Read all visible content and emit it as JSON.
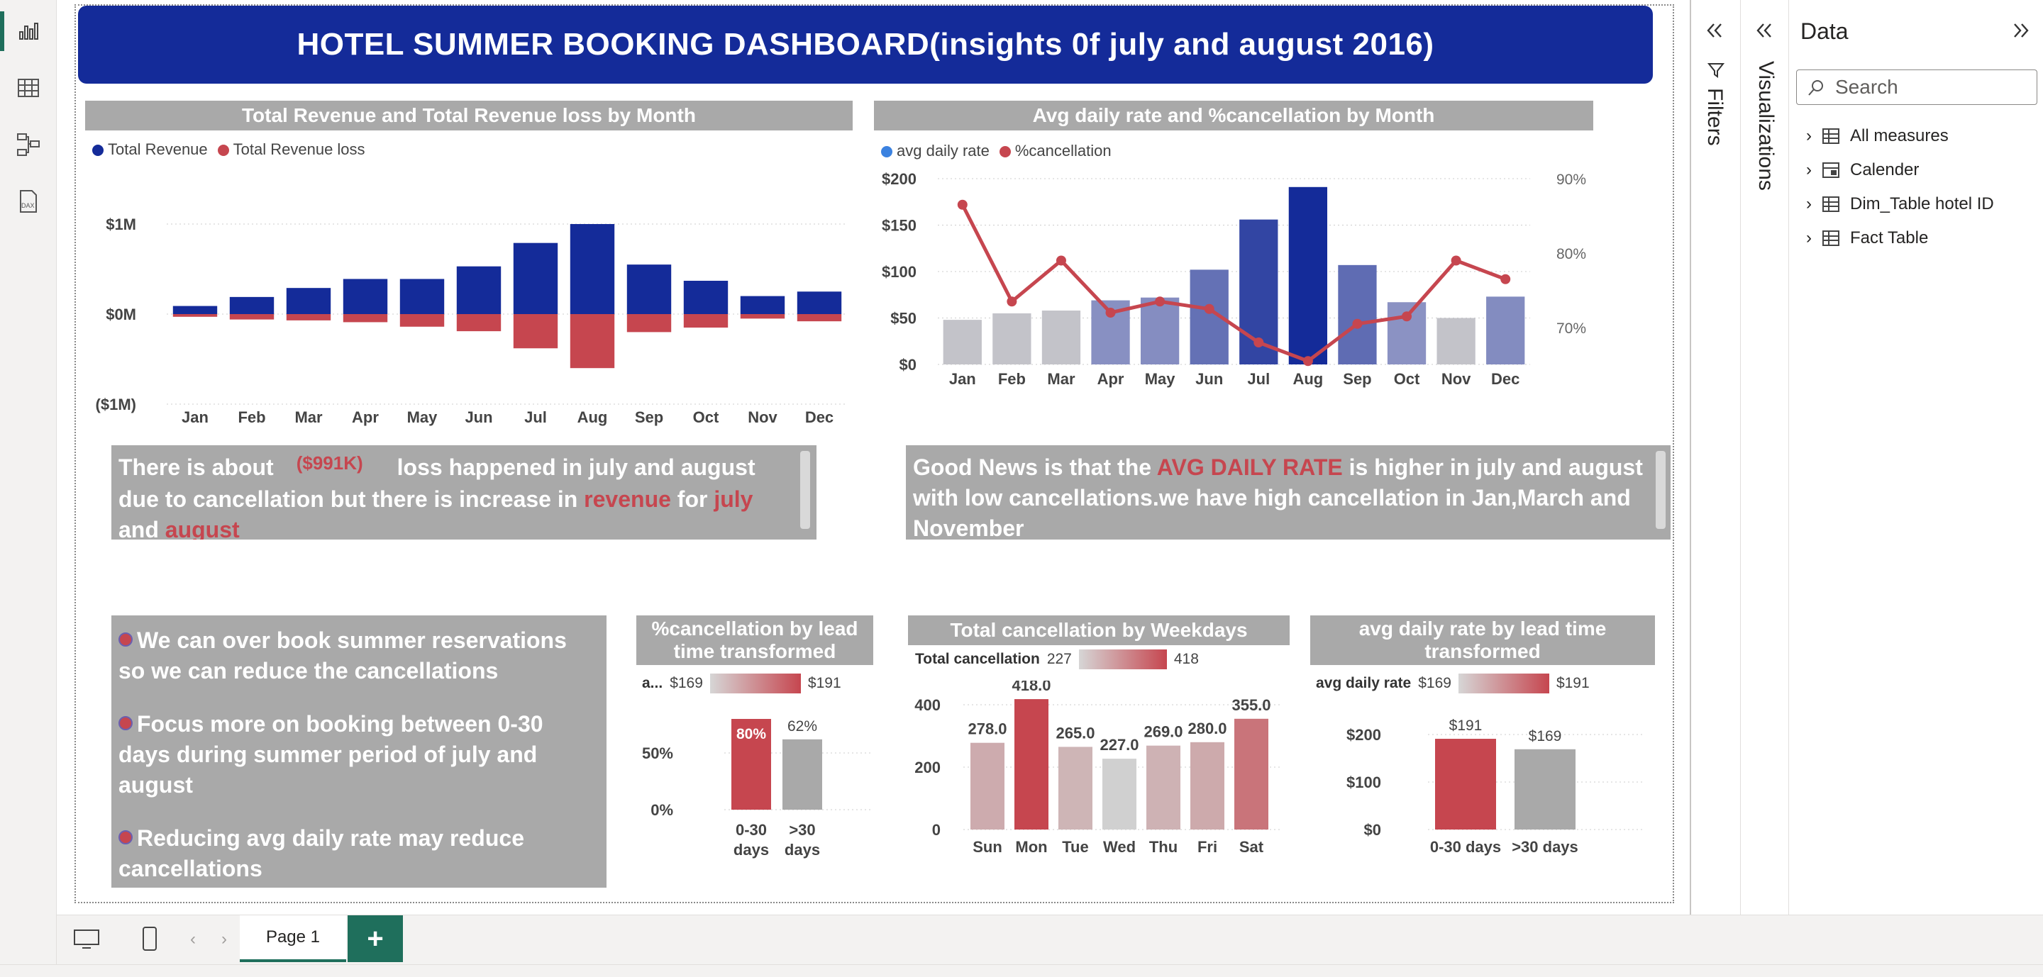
{
  "colors": {
    "title_bg": "#142b99",
    "revenue": "#142b99",
    "loss": "#c6464f",
    "panel_gray": "#a9a9a9",
    "accent_green": "#1f6f5c",
    "avg_rate_dot": "#3b82e0"
  },
  "rail": {
    "icons": [
      "report-view-icon",
      "table-view-icon",
      "model-view-icon",
      "dax-query-icon"
    ]
  },
  "dashboard": {
    "title": "HOTEL SUMMER BOOKING DASHBOARD(insights 0f july and august 2016)",
    "note_left": {
      "line1_pre": "There is about",
      "loss_value": "($991K)",
      "line1_post": "loss happened in july and august",
      "line2_pre": "due to cancellation but there is increase in",
      "kw_revenue": "revenue",
      "kw_for": "for",
      "kw_july": "july",
      "line3_and": "and",
      "kw_august": "august"
    },
    "note_right": {
      "pre": "Good News is that the",
      "kw": "AVG DAILY RATE",
      "post": "is higher in july and august with low cancellations.we have high cancellation in Jan,March and November"
    },
    "bullets": [
      "We can over book summer reservations so we can reduce the cancellations",
      "Focus more on booking between 0-30 days during summer period of july and august",
      "Reducing avg daily rate may reduce cancellations"
    ]
  },
  "chart_data": [
    {
      "type": "bar",
      "title": "Total Revenue and Total Revenue loss by Month",
      "legend": [
        "Total Revenue",
        "Total Revenue loss"
      ],
      "legend_position": "top-left",
      "categories": [
        "Jan",
        "Feb",
        "Mar",
        "Apr",
        "May",
        "Jun",
        "Jul",
        "Aug",
        "Sep",
        "Oct",
        "Nov",
        "Dec"
      ],
      "series": [
        {
          "name": "Total Revenue",
          "values": [
            0.09,
            0.19,
            0.29,
            0.39,
            0.39,
            0.53,
            0.79,
            1.0,
            0.55,
            0.37,
            0.2,
            0.25
          ]
        },
        {
          "name": "Total Revenue loss",
          "values": [
            -0.03,
            -0.06,
            -0.07,
            -0.09,
            -0.14,
            -0.19,
            -0.38,
            -0.6,
            -0.2,
            -0.15,
            -0.05,
            -0.08
          ]
        }
      ],
      "y_ticks": [
        "$1M",
        "$0M",
        "($1M)"
      ],
      "ylim": [
        -1,
        1
      ],
      "grid": true
    },
    {
      "type": "bar",
      "title": "Avg daily rate and %cancellation by Month",
      "legend": [
        "avg daily rate",
        "%cancellation"
      ],
      "legend_position": "top-left",
      "categories": [
        "Jan",
        "Feb",
        "Mar",
        "Apr",
        "May",
        "Jun",
        "Jul",
        "Aug",
        "Sep",
        "Oct",
        "Nov",
        "Dec"
      ],
      "series": [
        {
          "name": "avg daily rate",
          "values": [
            48,
            55,
            58,
            69,
            72,
            102,
            156,
            191,
            107,
            67,
            50,
            73
          ]
        },
        {
          "name": "%cancellation",
          "values": [
            86.5,
            73.5,
            79,
            72,
            73.5,
            72.5,
            68,
            65.5,
            70.5,
            71.5,
            79,
            76.5
          ]
        }
      ],
      "y_ticks": [
        "$200",
        "$150",
        "$100",
        "$50",
        "$0"
      ],
      "y2_ticks": [
        "90%",
        "80%",
        "70%"
      ],
      "ylim": [
        0,
        200
      ],
      "y2lim": [
        65,
        90
      ],
      "grid": true
    },
    {
      "type": "bar",
      "title": "%cancellation by lead time transformed",
      "legend_label": "a...",
      "legend_min": "$169",
      "legend_max": "$191",
      "categories": [
        "0-30 days",
        ">30 days"
      ],
      "values": [
        80,
        62
      ],
      "data_labels": [
        "80%",
        "62%"
      ],
      "y_ticks": [
        "50%",
        "0%"
      ],
      "ylim": [
        0,
        85
      ]
    },
    {
      "type": "bar",
      "title": "Total cancellation by Weekdays",
      "legend_label": "Total cancellation",
      "legend_min": "227",
      "legend_max": "418",
      "categories": [
        "Sun",
        "Mon",
        "Tue",
        "Wed",
        "Thu",
        "Fri",
        "Sat"
      ],
      "values": [
        278.0,
        418.0,
        265.0,
        227.0,
        269.0,
        280.0,
        355.0
      ],
      "data_labels": [
        "278.0",
        "418.0",
        "265.0",
        "227.0",
        "269.0",
        "280.0",
        "355.0"
      ],
      "y_ticks": [
        "400",
        "200",
        "0"
      ],
      "ylim": [
        0,
        450
      ]
    },
    {
      "type": "bar",
      "title": "avg daily rate by lead time transformed",
      "legend_label": "avg daily rate",
      "legend_min": "$169",
      "legend_max": "$191",
      "categories": [
        "0-30 days",
        ">30 days"
      ],
      "values": [
        191,
        169
      ],
      "data_labels": [
        "$191",
        "$169"
      ],
      "y_ticks": [
        "$200",
        "$100",
        "$0"
      ],
      "ylim": [
        0,
        200
      ]
    }
  ],
  "right_panes": {
    "filters_label": "Filters",
    "visualizations_label": "Visualizations",
    "data_title": "Data",
    "search_placeholder": "Search",
    "tables": [
      "All measures",
      "Calender",
      "Dim_Table hotel ID",
      "Fact Table"
    ]
  },
  "tabs": {
    "page1": "Page 1",
    "add": "+"
  }
}
